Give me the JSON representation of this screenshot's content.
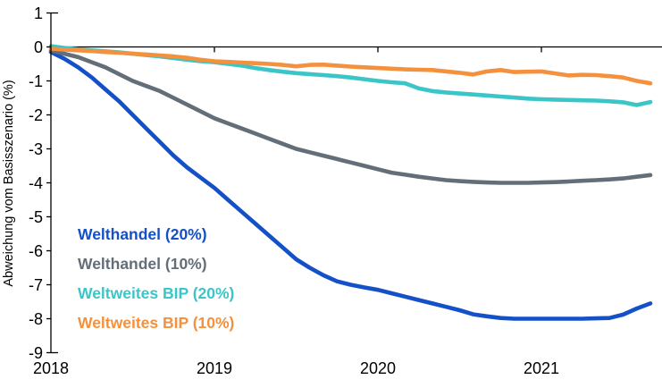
{
  "chart_data": {
    "type": "line",
    "title": "",
    "xlabel": "",
    "ylabel": "Abweichung vom Basisszenario (%)",
    "ylim": [
      -9,
      1
    ],
    "y_ticks": [
      1,
      0,
      -1,
      -2,
      -3,
      -4,
      -5,
      -6,
      -7,
      -8,
      -9
    ],
    "y_tick_labels": [
      "1",
      "0",
      "-1",
      "-2",
      "-3",
      "-4",
      "-5",
      "-6",
      "-7",
      "-8",
      "-9"
    ],
    "grid": false,
    "zero_line": true,
    "legend_position": "inside-left",
    "axis_color": "#000000",
    "x_axis": {
      "start_year": 2018,
      "months_per_point": 1,
      "tick_years": [
        2018,
        2019,
        2020,
        2021
      ],
      "tick_labels": [
        "2018",
        "2019",
        "2020",
        "2021"
      ]
    },
    "series": [
      {
        "name": "Welthandel (20%)",
        "color": "#1450c8",
        "values": [
          -0.15,
          -0.35,
          -0.6,
          -0.9,
          -1.25,
          -1.6,
          -2.0,
          -2.4,
          -2.8,
          -3.2,
          -3.55,
          -3.85,
          -4.15,
          -4.5,
          -4.85,
          -5.2,
          -5.55,
          -5.9,
          -6.25,
          -6.5,
          -6.72,
          -6.9,
          -7.0,
          -7.08,
          -7.15,
          -7.25,
          -7.35,
          -7.45,
          -7.55,
          -7.65,
          -7.75,
          -7.87,
          -7.93,
          -7.98,
          -8.0,
          -8.0,
          -8.0,
          -8.0,
          -8.0,
          -8.0,
          -7.99,
          -7.98,
          -7.88,
          -7.7,
          -7.55
        ]
      },
      {
        "name": "Welthandel (10%)",
        "color": "#636e79",
        "values": [
          -0.1,
          -0.2,
          -0.3,
          -0.45,
          -0.6,
          -0.8,
          -1.0,
          -1.15,
          -1.3,
          -1.5,
          -1.7,
          -1.9,
          -2.1,
          -2.25,
          -2.4,
          -2.55,
          -2.7,
          -2.85,
          -3.0,
          -3.1,
          -3.2,
          -3.3,
          -3.4,
          -3.5,
          -3.6,
          -3.7,
          -3.76,
          -3.82,
          -3.87,
          -3.92,
          -3.95,
          -3.97,
          -3.99,
          -4.0,
          -4.0,
          -4.0,
          -3.99,
          -3.98,
          -3.96,
          -3.94,
          -3.92,
          -3.9,
          -3.87,
          -3.82,
          -3.77
        ]
      },
      {
        "name": "Weltweites BIP (20%)",
        "color": "#3cc5c8",
        "values": [
          0.02,
          -0.03,
          -0.07,
          -0.1,
          -0.13,
          -0.16,
          -0.2,
          -0.24,
          -0.28,
          -0.33,
          -0.38,
          -0.42,
          -0.45,
          -0.5,
          -0.55,
          -0.62,
          -0.68,
          -0.73,
          -0.77,
          -0.8,
          -0.83,
          -0.86,
          -0.9,
          -0.95,
          -1.0,
          -1.04,
          -1.07,
          -1.22,
          -1.3,
          -1.34,
          -1.37,
          -1.4,
          -1.43,
          -1.46,
          -1.49,
          -1.52,
          -1.54,
          -1.55,
          -1.56,
          -1.57,
          -1.58,
          -1.6,
          -1.63,
          -1.71,
          -1.62
        ]
      },
      {
        "name": "Weltweites BIP (10%)",
        "color": "#f3913e",
        "values": [
          -0.05,
          -0.08,
          -0.1,
          -0.12,
          -0.15,
          -0.17,
          -0.2,
          -0.22,
          -0.25,
          -0.28,
          -0.32,
          -0.38,
          -0.42,
          -0.44,
          -0.46,
          -0.48,
          -0.5,
          -0.53,
          -0.57,
          -0.53,
          -0.52,
          -0.55,
          -0.58,
          -0.6,
          -0.62,
          -0.64,
          -0.66,
          -0.67,
          -0.68,
          -0.72,
          -0.76,
          -0.81,
          -0.72,
          -0.68,
          -0.74,
          -0.73,
          -0.72,
          -0.78,
          -0.84,
          -0.82,
          -0.83,
          -0.86,
          -0.9,
          -1.0,
          -1.07
        ]
      }
    ]
  }
}
